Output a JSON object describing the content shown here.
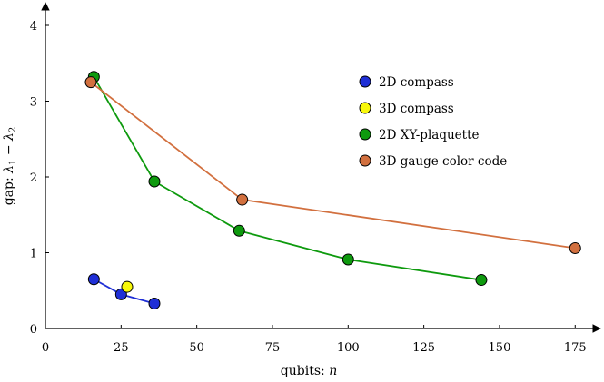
{
  "chart_data": {
    "type": "line",
    "xlabel": "qubits: n",
    "ylabel": "gap: λ1 − λ2",
    "xlim": [
      0,
      185
    ],
    "ylim": [
      0,
      4.2
    ],
    "xticks": [
      "0",
      "25",
      "50",
      "75",
      "100",
      "125",
      "150",
      "175"
    ],
    "yticks": [
      "0",
      "1",
      "2",
      "3",
      "4"
    ],
    "grid": false,
    "legend_position": "top-right",
    "series": [
      {
        "name": "2D compass",
        "color": "#1f2fd6",
        "line_color": "#1f2fd6",
        "points": [
          [
            16,
            0.65
          ],
          [
            25,
            0.45
          ],
          [
            36,
            0.33
          ]
        ]
      },
      {
        "name": "3D compass",
        "color": "#f8f80a",
        "line_color": null,
        "points": [
          [
            27,
            0.55
          ]
        ]
      },
      {
        "name": "2D XY-plaquette",
        "color": "#0e9a0e",
        "line_color": "#0e9a0e",
        "points": [
          [
            16,
            3.32
          ],
          [
            36,
            1.94
          ],
          [
            64,
            1.29
          ],
          [
            100,
            0.91
          ],
          [
            144,
            0.64
          ]
        ]
      },
      {
        "name": "3D gauge color code",
        "color": "#d2703f",
        "line_color": "#d2703f",
        "points": [
          [
            15,
            3.25
          ],
          [
            65,
            1.7
          ],
          [
            175,
            1.06
          ]
        ]
      }
    ]
  }
}
